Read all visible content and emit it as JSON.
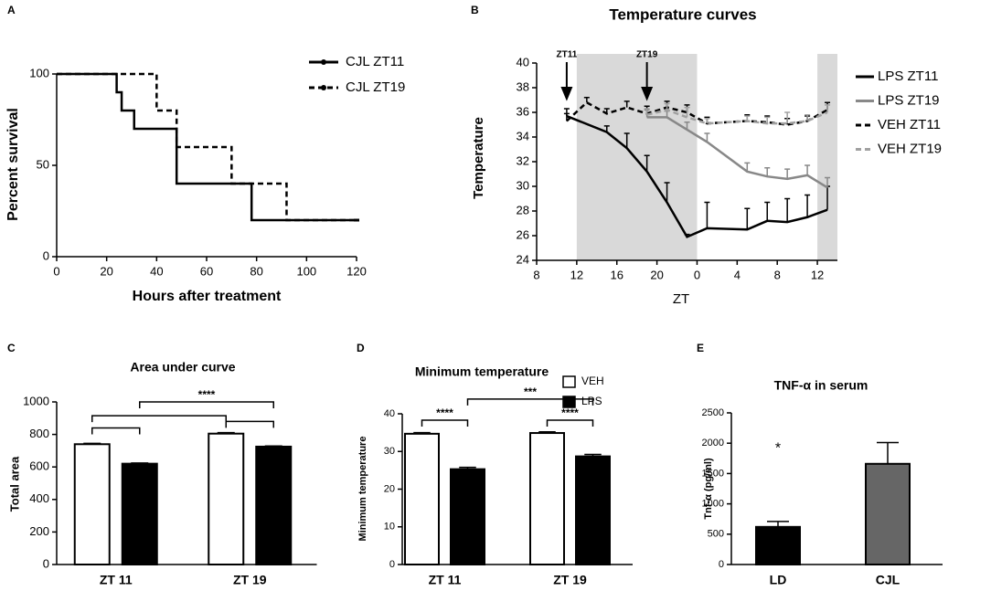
{
  "chart_data": [
    {
      "panel": "A",
      "type": "step",
      "xlabel": "Hours after treatment",
      "ylabel": "Percent survival",
      "xlim": [
        0,
        120
      ],
      "xticks": [
        0,
        20,
        40,
        60,
        80,
        100,
        120
      ],
      "ylim": [
        0,
        100
      ],
      "yticks": [
        0,
        50,
        100
      ],
      "series": [
        {
          "name": "CJL ZT11",
          "color": "#000000",
          "dash": false,
          "x": [
            0,
            24,
            26,
            31,
            48,
            78,
            120
          ],
          "values": [
            100,
            90,
            80,
            70,
            40,
            20,
            20
          ]
        },
        {
          "name": "CJL ZT19",
          "color": "#000000",
          "dash": true,
          "x": [
            0,
            40,
            48,
            70,
            92,
            120
          ],
          "values": [
            100,
            80,
            60,
            40,
            20,
            20
          ]
        }
      ]
    },
    {
      "panel": "B",
      "type": "line",
      "title": "Temperature curves",
      "xlabel": "ZT",
      "ylabel": "Temperature",
      "xlim": [
        8,
        38
      ],
      "xticks": [
        8,
        12,
        16,
        20,
        {
          "value": 24,
          "label": "0"
        },
        {
          "value": 28,
          "label": "4"
        },
        {
          "value": 32,
          "label": "8"
        },
        {
          "value": 36,
          "label": "12"
        }
      ],
      "ylim": [
        24,
        40
      ],
      "yticks": [
        24,
        26,
        28,
        30,
        32,
        34,
        36,
        38,
        40
      ],
      "shaded": [
        [
          12,
          24
        ],
        [
          36,
          38
        ]
      ],
      "annotations": [
        {
          "text": "ZT11",
          "x": 11
        },
        {
          "text": "ZT19",
          "x": 19
        }
      ],
      "series": [
        {
          "name": "LPS ZT11",
          "color": "#000000",
          "dash": false,
          "x": [
            11,
            15,
            17,
            19,
            21,
            23,
            25,
            29,
            31,
            33,
            35,
            37
          ],
          "values": [
            35.7,
            34.4,
            33.1,
            31.2,
            28.7,
            25.9,
            26.6,
            26.5,
            27.2,
            27.1,
            27.5,
            28.1
          ],
          "errors": [
            0.6,
            0.5,
            1.2,
            1.3,
            1.6,
            0.2,
            2.1,
            1.7,
            1.5,
            1.9,
            1.8,
            1.9
          ]
        },
        {
          "name": "LPS ZT19",
          "color": "#888888",
          "dash": false,
          "x": [
            19,
            21,
            23,
            25,
            29,
            31,
            33,
            35,
            37
          ],
          "values": [
            35.6,
            35.6,
            34.6,
            33.6,
            31.2,
            30.8,
            30.6,
            30.9,
            29.9
          ],
          "errors": [
            0.6,
            0.5,
            0.6,
            0.7,
            0.7,
            0.7,
            0.8,
            0.8,
            0.8
          ]
        },
        {
          "name": "VEH ZT11",
          "color": "#000000",
          "dash": true,
          "x": [
            11,
            13,
            15,
            17,
            19,
            21,
            23,
            25,
            29,
            31,
            33,
            35,
            37
          ],
          "values": [
            35.3,
            36.8,
            35.9,
            36.4,
            35.9,
            36.4,
            36.0,
            35.1,
            35.3,
            35.2,
            35.0,
            35.3,
            36.2
          ],
          "errors": [
            0.6,
            0.4,
            0.4,
            0.5,
            0.6,
            0.5,
            0.6,
            0.5,
            0.5,
            0.5,
            0.5,
            0.4,
            0.6
          ]
        },
        {
          "name": "VEH ZT19",
          "color": "#a0a0a0",
          "dash": true,
          "x": [
            19,
            21,
            23,
            25,
            29,
            31,
            33,
            35,
            37
          ],
          "values": [
            35.8,
            36.2,
            35.6,
            35.1,
            35.3,
            35.1,
            35.1,
            35.3,
            36.0
          ],
          "errors": [
            0.5,
            0.5,
            0.8,
            0.4,
            0.4,
            0.5,
            0.9,
            0.5,
            0.6
          ]
        }
      ]
    },
    {
      "panel": "C",
      "type": "bar",
      "title": "Area under curve",
      "ylabel": "Total area",
      "categories": [
        "ZT 11",
        "ZT 19"
      ],
      "ylim": [
        0,
        1000
      ],
      "yticks": [
        0,
        200,
        400,
        600,
        800,
        1000
      ],
      "series": [
        {
          "colors": [
            "#ffffff",
            "#ffffff"
          ],
          "values": [
            740,
            805
          ],
          "errors": [
            5,
            6
          ]
        },
        {
          "colors": [
            "#000000",
            "#000000"
          ],
          "values": [
            620,
            725
          ],
          "errors": [
            4,
            4
          ]
        }
      ],
      "annotations": [
        "****"
      ]
    },
    {
      "panel": "D",
      "type": "bar",
      "title": "Minimum temperature",
      "ylabel": "Minimum temperature",
      "categories": [
        "ZT 11",
        "ZT 19"
      ],
      "ylim": [
        0,
        40
      ],
      "yticks": [
        0,
        10,
        20,
        30,
        40
      ],
      "series": [
        {
          "name": "VEH",
          "colors": [
            "#ffffff",
            "#ffffff"
          ],
          "values": [
            34.7,
            34.9
          ],
          "errors": [
            0.3,
            0.3
          ]
        },
        {
          "name": "LPS",
          "colors": [
            "#000000",
            "#000000"
          ],
          "values": [
            25.3,
            28.7
          ],
          "errors": [
            0.5,
            0.5
          ]
        }
      ],
      "annotations": [
        "****",
        "***",
        "****"
      ]
    },
    {
      "panel": "E",
      "type": "bar",
      "title": "TNF-α in serum",
      "ylabel": "Tnf-α (pg/ml)",
      "categories": [
        "LD",
        "CJL"
      ],
      "ylim": [
        0,
        2500
      ],
      "yticks": [
        0,
        500,
        1000,
        1500,
        2000,
        2500
      ],
      "series": [
        {
          "colors": [
            "#000000",
            "#666666"
          ],
          "values": [
            620,
            1660
          ],
          "errors": [
            90,
            350
          ]
        }
      ],
      "annotations": [
        "*"
      ]
    }
  ]
}
